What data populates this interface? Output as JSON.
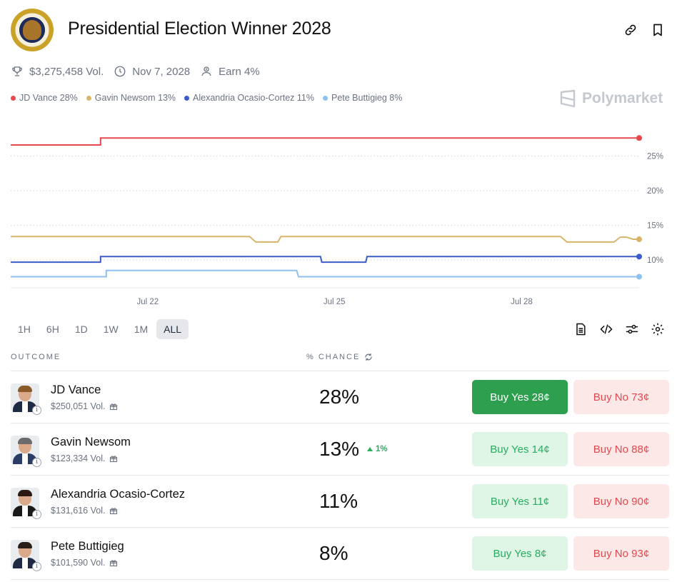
{
  "header": {
    "title": "Presidential Election Winner 2028",
    "logo": "presidential-seal"
  },
  "meta": {
    "volume": "$3,275,458 Vol.",
    "date": "Nov 7, 2028",
    "earn": "Earn 4%"
  },
  "brand": "Polymarket",
  "legend": [
    {
      "label": "JD Vance 28%",
      "color": "#e5484d"
    },
    {
      "label": "Gavin Newsom 13%",
      "color": "#d9b56a"
    },
    {
      "label": "Alexandria Ocasio-Cortez 11%",
      "color": "#3b5bc9"
    },
    {
      "label": "Pete Buttigieg 8%",
      "color": "#8fc1f0"
    }
  ],
  "chart_data": {
    "type": "line",
    "x_ticks": [
      "Jul 22",
      "Jul 25",
      "Jul 28"
    ],
    "y_ticks": [
      "25%",
      "20%",
      "15%",
      "10%"
    ],
    "ylim": [
      6,
      30
    ],
    "grid": true,
    "series": [
      {
        "name": "JD Vance",
        "color": "#e5484d",
        "points": [
          [
            0,
            26.6
          ],
          [
            0.143,
            26.6
          ],
          [
            0.143,
            27.6
          ],
          [
            1,
            27.6
          ]
        ]
      },
      {
        "name": "Gavin Newsom",
        "color": "#d9b56a",
        "points": [
          [
            0,
            13.4
          ],
          [
            0.38,
            13.4
          ],
          [
            0.39,
            12.6
          ],
          [
            0.425,
            12.6
          ],
          [
            0.43,
            13.4
          ],
          [
            0.875,
            13.4
          ],
          [
            0.885,
            12.6
          ],
          [
            0.96,
            12.6
          ],
          [
            0.97,
            13.3
          ],
          [
            0.98,
            13.3
          ],
          [
            0.99,
            13.0
          ],
          [
            1,
            13.0
          ]
        ]
      },
      {
        "name": "Alexandria Ocasio-Cortez",
        "color": "#3b5bc9",
        "points": [
          [
            0,
            9.7
          ],
          [
            0.143,
            9.7
          ],
          [
            0.143,
            10.5
          ],
          [
            0.493,
            10.5
          ],
          [
            0.495,
            9.7
          ],
          [
            0.565,
            9.7
          ],
          [
            0.567,
            10.5
          ],
          [
            1,
            10.5
          ]
        ]
      },
      {
        "name": "Pete Buttigieg",
        "color": "#8fc1f0",
        "points": [
          [
            0,
            7.6
          ],
          [
            0.152,
            7.6
          ],
          [
            0.152,
            8.5
          ],
          [
            0.455,
            8.5
          ],
          [
            0.458,
            7.6
          ],
          [
            1,
            7.6
          ]
        ]
      }
    ]
  },
  "ranges": {
    "items": [
      "1H",
      "6H",
      "1D",
      "1W",
      "1M",
      "ALL"
    ],
    "active": "ALL"
  },
  "table": {
    "col_outcome": "OUTCOME",
    "col_chance": "% CHANCE",
    "rows": [
      {
        "name": "JD Vance",
        "vol": "$250,051 Vol.",
        "pct": "28%",
        "delta": "",
        "yes": "Buy Yes 28¢",
        "no": "Buy No 73¢"
      },
      {
        "name": "Gavin Newsom",
        "vol": "$123,334 Vol.",
        "pct": "13%",
        "delta": "1%",
        "yes": "Buy Yes 14¢",
        "no": "Buy No 88¢"
      },
      {
        "name": "Alexandria Ocasio-Cortez",
        "vol": "$131,616 Vol.",
        "pct": "11%",
        "delta": "",
        "yes": "Buy Yes 11¢",
        "no": "Buy No 90¢"
      },
      {
        "name": "Pete Buttigieg",
        "vol": "$101,590 Vol.",
        "pct": "8%",
        "delta": "",
        "yes": "Buy Yes 8¢",
        "no": "Buy No 93¢"
      }
    ]
  }
}
